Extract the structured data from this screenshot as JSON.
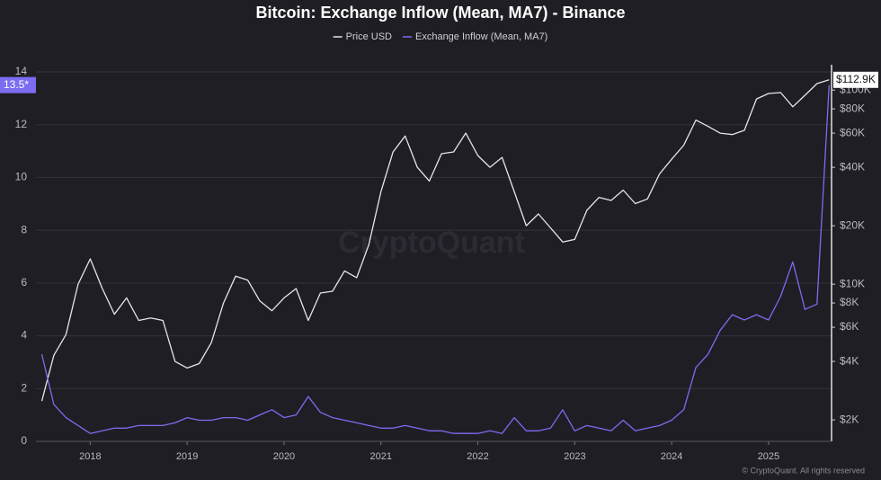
{
  "chart_data": {
    "type": "line",
    "title": "Bitcoin: Exchange Inflow (Mean, MA7) - Binance",
    "watermark": "CryptoQuant",
    "source": "© CryptoQuant. All rights reserved",
    "x": [
      2017.5,
      2017.625,
      2017.75,
      2017.875,
      2018.0,
      2018.125,
      2018.25,
      2018.375,
      2018.5,
      2018.625,
      2018.75,
      2018.875,
      2019.0,
      2019.125,
      2019.25,
      2019.375,
      2019.5,
      2019.625,
      2019.75,
      2019.875,
      2020.0,
      2020.125,
      2020.25,
      2020.375,
      2020.5,
      2020.625,
      2020.75,
      2020.875,
      2021.0,
      2021.125,
      2021.25,
      2021.375,
      2021.5,
      2021.625,
      2021.75,
      2021.875,
      2022.0,
      2022.125,
      2022.25,
      2022.375,
      2022.5,
      2022.625,
      2022.75,
      2022.875,
      2023.0,
      2023.125,
      2023.25,
      2023.375,
      2023.5,
      2023.625,
      2023.75,
      2023.875,
      2024.0,
      2024.125,
      2024.25,
      2024.375,
      2024.5,
      2024.625,
      2024.75,
      2024.875,
      2025.0,
      2025.125,
      2025.25,
      2025.375,
      2025.5,
      2025.625
    ],
    "xlim": [
      2017.44,
      2025.65
    ],
    "xticks": [
      2018,
      2019,
      2020,
      2021,
      2022,
      2023,
      2024,
      2025
    ],
    "ylim": [
      0,
      14
    ],
    "yticks": [
      0,
      2,
      4,
      6,
      8,
      10,
      12,
      14
    ],
    "y2lim": [
      1550,
      124000
    ],
    "y2scale": "log",
    "y2ticks": [
      {
        "value": 2000,
        "label": "$2K"
      },
      {
        "value": 4000,
        "label": "$4K"
      },
      {
        "value": 6000,
        "label": "$6K"
      },
      {
        "value": 8000,
        "label": "$8K"
      },
      {
        "value": 10000,
        "label": "$10K"
      },
      {
        "value": 20000,
        "label": "$20K"
      },
      {
        "value": 40000,
        "label": "$40K"
      },
      {
        "value": 60000,
        "label": "$60K"
      },
      {
        "value": 80000,
        "label": "$80K"
      },
      {
        "value": 100000,
        "label": "$100K"
      }
    ],
    "grid": true,
    "legend": "top",
    "series": [
      {
        "name": "Price USD",
        "color": "#e6e6e6",
        "axis": "y2",
        "values": [
          2500,
          4300,
          5500,
          10000,
          13500,
          9500,
          7000,
          8500,
          6500,
          6700,
          6500,
          4000,
          3700,
          3900,
          5000,
          8000,
          11000,
          10500,
          8200,
          7300,
          8500,
          9500,
          6500,
          9000,
          9200,
          11700,
          10800,
          16000,
          30000,
          48000,
          58000,
          40000,
          34000,
          47000,
          48000,
          60000,
          46000,
          40000,
          45000,
          30000,
          20000,
          23000,
          19500,
          16500,
          17000,
          24000,
          28000,
          27000,
          30500,
          26000,
          27500,
          37000,
          44000,
          52000,
          70000,
          65000,
          60000,
          59000,
          62000,
          90000,
          96000,
          97000,
          82000,
          94000,
          108000,
          112900
        ],
        "value_labels": [
          null,
          null,
          null,
          null,
          null,
          null,
          null,
          null,
          null,
          null,
          null,
          null,
          null,
          null,
          null,
          null,
          null,
          null,
          null,
          null,
          null,
          null,
          null,
          null,
          null,
          null,
          null,
          null,
          null,
          null,
          null,
          null,
          null,
          null,
          null,
          null,
          null,
          null,
          null,
          null,
          null,
          null,
          null,
          null,
          null,
          null,
          null,
          null,
          null,
          null,
          null,
          null,
          null,
          null,
          null,
          null,
          null,
          null,
          null,
          null,
          null,
          null,
          null,
          null,
          null,
          "$112.9K"
        ]
      },
      {
        "name": "Exchange Inflow (Mean, MA7)",
        "color": "#7b6cf0",
        "values": [
          3.3,
          1.4,
          0.9,
          0.6,
          0.3,
          0.4,
          0.5,
          0.5,
          0.6,
          0.6,
          0.6,
          0.7,
          0.9,
          0.8,
          0.8,
          0.9,
          0.9,
          0.8,
          1.0,
          1.2,
          0.9,
          1.0,
          1.7,
          1.1,
          0.9,
          0.8,
          0.7,
          0.6,
          0.5,
          0.5,
          0.6,
          0.5,
          0.4,
          0.4,
          0.3,
          0.3,
          0.3,
          0.4,
          0.3,
          0.9,
          0.4,
          0.4,
          0.5,
          1.2,
          0.4,
          0.6,
          0.5,
          0.4,
          0.8,
          0.4,
          0.5,
          0.6,
          0.8,
          1.2,
          2.8,
          3.3,
          4.2,
          4.8,
          4.6,
          4.8,
          4.6,
          5.5,
          6.8,
          5.0,
          5.2,
          13.5
        ],
        "value_labels": [
          null,
          null,
          null,
          null,
          null,
          null,
          null,
          null,
          null,
          null,
          null,
          null,
          null,
          null,
          null,
          null,
          null,
          null,
          null,
          null,
          null,
          null,
          null,
          null,
          null,
          null,
          null,
          null,
          null,
          null,
          null,
          null,
          null,
          null,
          null,
          null,
          null,
          null,
          null,
          null,
          null,
          null,
          null,
          null,
          null,
          null,
          null,
          null,
          null,
          null,
          null,
          null,
          null,
          null,
          null,
          null,
          null,
          null,
          null,
          null,
          null,
          null,
          null,
          null,
          null,
          "13.5*"
        ]
      }
    ]
  }
}
